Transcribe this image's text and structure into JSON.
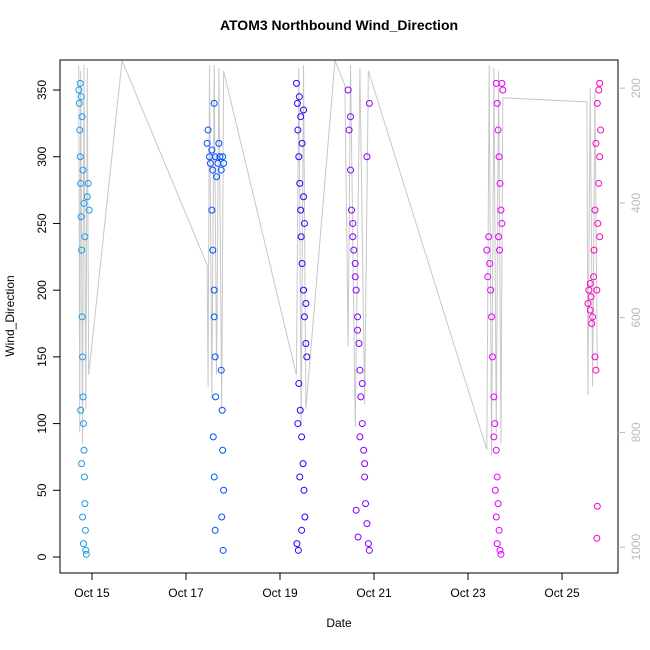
{
  "chart_data": {
    "type": "scatter",
    "title": "ATOM3 Northbound Wind_Direction",
    "xlabel": "Date",
    "ylabel": "Wind_Direction",
    "xlim": [
      14.32,
      26.19
    ],
    "xticks": [
      {
        "value": 15,
        "label": "Oct 15"
      },
      {
        "value": 17,
        "label": "Oct 17"
      },
      {
        "value": 19,
        "label": "Oct 19"
      },
      {
        "value": 21,
        "label": "Oct 21"
      },
      {
        "value": 23,
        "label": "Oct 23"
      },
      {
        "value": 25,
        "label": "Oct 25"
      }
    ],
    "ylim": [
      -12,
      372.5
    ],
    "yticks": [
      0,
      50,
      100,
      150,
      200,
      250,
      300,
      350
    ],
    "y2lim": [
      1045,
      151
    ],
    "y2ticks": [
      200,
      400,
      600,
      800,
      1000
    ],
    "y2color": "#bbbbbb",
    "series": [
      {
        "color": "#1a9be8",
        "x": [
          14.72,
          14.73,
          14.74,
          14.75,
          14.76,
          14.77,
          14.78,
          14.79,
          14.8,
          14.81,
          14.82,
          14.83,
          14.84,
          14.85,
          14.86,
          14.87,
          14.88,
          14.9,
          14.92,
          14.94,
          14.75,
          14.77,
          14.79,
          14.81,
          14.83,
          14.85,
          14.76,
          14.78,
          14.8,
          14.82
        ],
        "values": [
          350,
          340,
          320,
          300,
          280,
          255,
          230,
          180,
          150,
          120,
          100,
          80,
          60,
          40,
          20,
          5,
          2,
          270,
          280,
          260,
          355,
          345,
          330,
          290,
          265,
          240,
          110,
          70,
          30,
          10
        ]
      },
      {
        "color": "#0050ff",
        "x": [
          17.45,
          17.47,
          17.5,
          17.52,
          17.55,
          17.57,
          17.6,
          17.62,
          17.65,
          17.68,
          17.7,
          17.72,
          17.75,
          17.78,
          17.8,
          17.55,
          17.57,
          17.6,
          17.6,
          17.62,
          17.63,
          17.58,
          17.6,
          17.62,
          17.75,
          17.77,
          17.78,
          17.8,
          17.76,
          17.79
        ],
        "values": [
          310,
          320,
          300,
          295,
          305,
          290,
          340,
          300,
          285,
          295,
          310,
          300,
          290,
          300,
          295,
          260,
          230,
          200,
          180,
          150,
          120,
          90,
          60,
          20,
          140,
          110,
          80,
          50,
          30,
          5
        ]
      },
      {
        "color": "#2a00ff",
        "x": [
          19.35,
          19.37,
          19.38,
          19.4,
          19.42,
          19.44,
          19.45,
          19.47,
          19.5,
          19.52,
          19.55,
          19.57,
          19.4,
          19.43,
          19.46,
          19.49,
          19.51,
          19.53,
          19.36,
          19.39,
          19.41,
          19.44,
          19.47,
          19.5,
          19.52,
          19.55,
          19.38,
          19.42,
          19.46,
          19.5
        ],
        "values": [
          355,
          340,
          320,
          300,
          280,
          260,
          240,
          220,
          200,
          180,
          160,
          150,
          130,
          110,
          90,
          70,
          50,
          30,
          10,
          5,
          345,
          330,
          310,
          270,
          250,
          190,
          100,
          60,
          20,
          335
        ]
      },
      {
        "color": "#8800ff",
        "x": [
          20.45,
          20.47,
          20.5,
          20.52,
          20.55,
          20.57,
          20.6,
          20.62,
          20.65,
          20.68,
          20.7,
          20.72,
          20.75,
          20.78,
          20.8,
          20.82,
          20.85,
          20.88,
          20.9,
          20.5,
          20.55,
          20.6,
          20.65,
          20.7,
          20.75,
          20.8,
          20.85,
          20.9,
          20.62,
          20.66
        ],
        "values": [
          350,
          320,
          290,
          260,
          240,
          230,
          220,
          200,
          180,
          160,
          140,
          120,
          100,
          80,
          60,
          40,
          25,
          10,
          5,
          330,
          250,
          210,
          170,
          90,
          130,
          70,
          300,
          340,
          35,
          15
        ]
      },
      {
        "color": "#e600ff",
        "x": [
          23.4,
          23.42,
          23.44,
          23.46,
          23.48,
          23.5,
          23.52,
          23.55,
          23.57,
          23.6,
          23.62,
          23.64,
          23.66,
          23.68,
          23.7,
          23.72,
          23.74,
          23.6,
          23.62,
          23.64,
          23.66,
          23.68,
          23.7,
          23.55,
          23.58,
          23.6,
          23.62,
          23.65,
          23.67,
          23.72
        ],
        "values": [
          230,
          210,
          240,
          220,
          200,
          180,
          150,
          120,
          100,
          80,
          60,
          40,
          20,
          5,
          2,
          355,
          350,
          355,
          340,
          320,
          300,
          280,
          260,
          90,
          50,
          30,
          10,
          240,
          230,
          250
        ]
      },
      {
        "color": "#ff00c8",
        "x": [
          25.55,
          25.57,
          25.6,
          25.62,
          25.65,
          25.67,
          25.7,
          25.72,
          25.74,
          25.76,
          25.78,
          25.8,
          25.82,
          25.6,
          25.63,
          25.68,
          25.7,
          25.72,
          25.75,
          25.78,
          25.8,
          25.8,
          25.75,
          25.74
        ],
        "values": [
          190,
          200,
          185,
          195,
          180,
          210,
          150,
          140,
          200,
          250,
          280,
          300,
          320,
          205,
          175,
          230,
          260,
          310,
          340,
          350,
          355,
          240,
          38,
          14
        ]
      },
      {
        "type": "line",
        "axis": "y2",
        "color": "#c8c8c8",
        "x": [
          14.72,
          14.74,
          14.76,
          14.8,
          14.83,
          14.87,
          14.9,
          14.93,
          15.64,
          17.45,
          17.47,
          17.5,
          17.55,
          17.6,
          17.65,
          17.7,
          17.76,
          17.8,
          19.35,
          19.4,
          19.45,
          19.5,
          19.55,
          20.17,
          20.38,
          20.45,
          20.5,
          20.6,
          20.7,
          20.8,
          20.88,
          23.4,
          23.45,
          23.5,
          23.55,
          23.6,
          23.65,
          23.7,
          23.74,
          25.53,
          25.55,
          25.6,
          25.65,
          25.7,
          25.75
        ],
        "values": [
          160,
          800,
          170,
          820,
          160,
          760,
          165,
          700,
          152,
          508,
          720,
          160,
          740,
          160,
          700,
          165,
          760,
          170,
          700,
          165,
          790,
          160,
          760,
          152,
          195,
          650,
          160,
          790,
          165,
          750,
          170,
          830,
          160,
          840,
          165,
          800,
          170,
          820,
          217,
          224,
          735,
          200,
          720,
          205,
          690
        ]
      }
    ]
  }
}
